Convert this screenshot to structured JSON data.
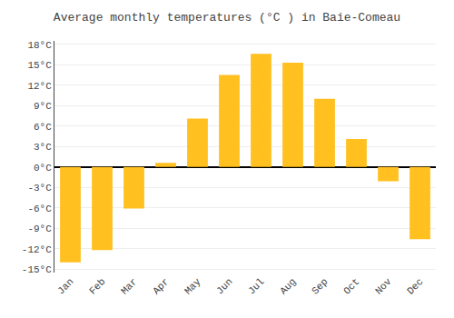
{
  "chart_data": {
    "type": "bar",
    "title": "Average monthly temperatures (°C ) in Baie-Comeau",
    "categories": [
      "Jan",
      "Feb",
      "Mar",
      "Apr",
      "May",
      "Jun",
      "Jul",
      "Aug",
      "Sep",
      "Oct",
      "Nov",
      "Dec"
    ],
    "values": [
      -14.0,
      -12.2,
      -6.1,
      0.6,
      7.1,
      13.5,
      16.6,
      15.3,
      10.0,
      4.1,
      -2.1,
      -10.6
    ],
    "color": "#FFC020",
    "ylim": [
      -15.5,
      18.5
    ],
    "yticks": [
      {
        "value": -15,
        "label": "-15°C"
      },
      {
        "value": -12,
        "label": "-12°C"
      },
      {
        "value": -9,
        "label": "-9°C"
      },
      {
        "value": -6,
        "label": "-6°C"
      },
      {
        "value": -3,
        "label": "-3°C"
      },
      {
        "value": 0,
        "label": "0°C"
      },
      {
        "value": 3,
        "label": "3°C"
      },
      {
        "value": 6,
        "label": "6°C"
      },
      {
        "value": 9,
        "label": "9°C"
      },
      {
        "value": 12,
        "label": "12°C"
      },
      {
        "value": 15,
        "label": "15°C"
      },
      {
        "value": 18,
        "label": "18°C"
      }
    ],
    "grid": true
  }
}
